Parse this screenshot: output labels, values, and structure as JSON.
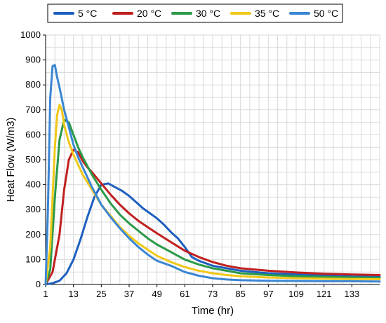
{
  "chart_data": {
    "type": "line",
    "title": "",
    "xlabel": "Time (hr)",
    "ylabel": "Heat Flow (W/m3)",
    "xlim": [
      1,
      145
    ],
    "ylim": [
      0,
      1000
    ],
    "x_ticks": [
      1,
      13,
      25,
      37,
      49,
      61,
      73,
      85,
      97,
      109,
      121,
      133
    ],
    "y_ticks": [
      0,
      100,
      200,
      300,
      400,
      500,
      600,
      700,
      800,
      900,
      1000
    ],
    "grid": true,
    "legend_position": "top",
    "series": [
      {
        "name": "5 °C",
        "color": "#1f5fbf",
        "x": [
          1,
          4,
          7,
          10,
          13,
          16,
          19,
          22,
          25,
          28,
          31,
          34,
          37,
          40,
          43,
          46,
          49,
          52,
          55,
          58,
          61,
          64,
          67,
          70,
          73,
          79,
          85,
          97,
          109,
          121,
          133,
          145
        ],
        "y": [
          0,
          5,
          15,
          45,
          100,
          180,
          270,
          350,
          400,
          405,
          390,
          375,
          355,
          330,
          305,
          285,
          265,
          240,
          210,
          185,
          150,
          110,
          95,
          85,
          75,
          65,
          55,
          45,
          40,
          35,
          32,
          30
        ]
      },
      {
        "name": "20 °C",
        "color": "#c0201f",
        "x": [
          1,
          4,
          7,
          9,
          11,
          13,
          15,
          17,
          19,
          21,
          25,
          29,
          33,
          37,
          41,
          45,
          49,
          55,
          61,
          67,
          73,
          79,
          85,
          97,
          109,
          121,
          133,
          145
        ],
        "y": [
          0,
          50,
          200,
          380,
          500,
          540,
          530,
          495,
          470,
          450,
          405,
          360,
          320,
          285,
          255,
          230,
          205,
          170,
          135,
          110,
          90,
          75,
          65,
          55,
          48,
          43,
          40,
          38
        ]
      },
      {
        "name": "30 °C",
        "color": "#2a9a48",
        "x": [
          1,
          3,
          5,
          7,
          9,
          11,
          13,
          15,
          17,
          19,
          21,
          25,
          29,
          33,
          37,
          41,
          45,
          49,
          55,
          61,
          67,
          73,
          79,
          85,
          97,
          109,
          121,
          133,
          145
        ],
        "y": [
          0,
          60,
          350,
          580,
          660,
          650,
          600,
          550,
          510,
          475,
          440,
          380,
          325,
          280,
          245,
          215,
          185,
          160,
          130,
          100,
          80,
          65,
          55,
          45,
          38,
          33,
          30,
          28,
          27
        ]
      },
      {
        "name": "35 °C",
        "color": "#f0c818",
        "x": [
          1,
          3,
          5,
          6,
          7,
          8,
          9,
          11,
          13,
          15,
          17,
          21,
          25,
          29,
          33,
          37,
          41,
          45,
          49,
          55,
          61,
          67,
          73,
          79,
          85,
          97,
          109,
          121,
          133,
          145
        ],
        "y": [
          0,
          150,
          550,
          680,
          720,
          700,
          640,
          570,
          520,
          480,
          440,
          380,
          320,
          275,
          230,
          195,
          165,
          140,
          115,
          90,
          70,
          55,
          45,
          38,
          33,
          28,
          25,
          23,
          22,
          21
        ]
      },
      {
        "name": "50 °C",
        "color": "#3b86d3",
        "x": [
          1,
          2,
          3,
          4,
          5,
          6,
          7,
          9,
          11,
          13,
          15,
          17,
          19,
          21,
          25,
          29,
          33,
          37,
          41,
          45,
          49,
          55,
          61,
          67,
          73,
          79,
          85,
          97,
          109,
          121,
          133,
          145
        ],
        "y": [
          0,
          300,
          750,
          875,
          880,
          830,
          790,
          700,
          630,
          560,
          510,
          470,
          430,
          390,
          320,
          270,
          225,
          185,
          150,
          120,
          95,
          75,
          50,
          35,
          25,
          20,
          17,
          15,
          14,
          13,
          13,
          12
        ]
      }
    ]
  }
}
